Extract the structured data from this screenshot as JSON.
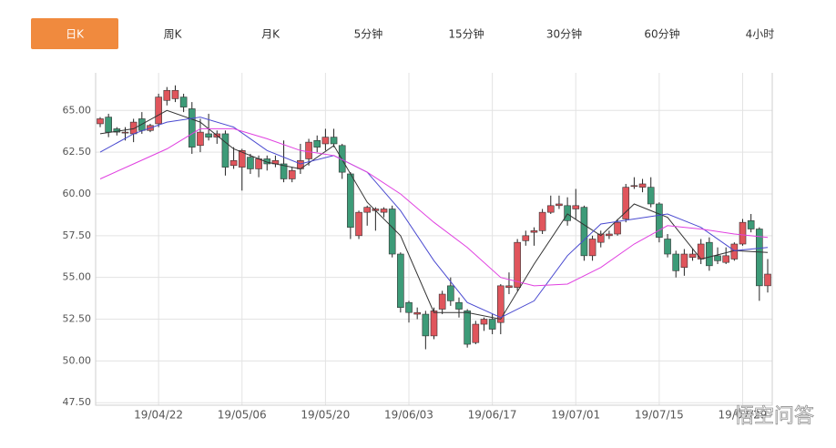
{
  "tabs": [
    "日K",
    "周K",
    "月K",
    "5分钟",
    "15分钟",
    "30分钟",
    "60分钟",
    "4小时"
  ],
  "active_tab": 0,
  "watermark": "悟空问答",
  "chart_data": {
    "type": "candlestick",
    "up_color": "#e0555c",
    "down_color": "#3d9b78",
    "grid": true,
    "ylim": [
      47.35,
      67.25
    ],
    "yticks": [
      {
        "value": 47.5,
        "label": "47.50"
      },
      {
        "value": 50,
        "label": "50.00"
      },
      {
        "value": 52.5,
        "label": "52.50"
      },
      {
        "value": 55,
        "label": "55.00"
      },
      {
        "value": 57.5,
        "label": "57.50"
      },
      {
        "value": 60,
        "label": "60.00"
      },
      {
        "value": 62.5,
        "label": "62.50"
      },
      {
        "value": 65,
        "label": "65.00"
      }
    ],
    "categories": [
      null,
      null,
      null,
      null,
      null,
      null,
      null,
      "19/04/22",
      null,
      null,
      null,
      null,
      null,
      null,
      null,
      null,
      null,
      "19/05/06",
      null,
      null,
      null,
      null,
      null,
      null,
      null,
      null,
      null,
      "19/05/20",
      null,
      null,
      null,
      null,
      null,
      null,
      null,
      null,
      null,
      "19/06/03",
      null,
      null,
      null,
      null,
      null,
      null,
      null,
      null,
      null,
      "19/06/17",
      null,
      null,
      null,
      null,
      null,
      null,
      null,
      null,
      null,
      "19/07/01",
      null,
      null,
      null,
      null,
      null,
      null,
      null,
      null,
      null,
      "19/07/15",
      null,
      null,
      null,
      null,
      null,
      null,
      null,
      null,
      null,
      "19/07/29",
      null,
      null,
      null
    ],
    "open": [
      64.2,
      64.6,
      63.9,
      63.7,
      63.6,
      64.5,
      63.8,
      64.2,
      65.6,
      65.7,
      65.8,
      65.1,
      62.9,
      63.6,
      63.4,
      63.6,
      61.7,
      61.6,
      62.2,
      61.5,
      62.1,
      61.8,
      61.8,
      60.9,
      61.5,
      62.1,
      63.2,
      63.0,
      63.4,
      62.9,
      61.2,
      57.5,
      58.9,
      59.0,
      58.9,
      59.1,
      56.4,
      53.5,
      52.8,
      52.8,
      51.5,
      53.1,
      54.5,
      53.5,
      53.0,
      51.1,
      52.2,
      52.5,
      52.3,
      54.4,
      54.4,
      57.2,
      57.7,
      57.8,
      58.9,
      59.3,
      59.3,
      59.1,
      59.2,
      56.3,
      57.1,
      57.5,
      57.6,
      58.5,
      60.5,
      60.4,
      60.4,
      59.4,
      57.3,
      56.4,
      55.6,
      56.2,
      56.1,
      57.1,
      56.3,
      55.9,
      56.1,
      57.0,
      58.4,
      57.9,
      54.5
    ],
    "high": [
      64.6,
      64.8,
      64.0,
      64.0,
      64.5,
      64.9,
      64.2,
      66.0,
      66.4,
      66.5,
      66.0,
      65.5,
      64.5,
      64.8,
      63.8,
      63.8,
      62.8,
      62.7,
      62.4,
      62.3,
      62.3,
      62.3,
      63.2,
      61.6,
      63.0,
      63.3,
      63.5,
      63.9,
      63.9,
      63.0,
      61.3,
      59.0,
      59.3,
      59.2,
      59.2,
      59.3,
      56.5,
      53.6,
      53.2,
      53.0,
      53.2,
      54.2,
      55.0,
      53.8,
      53.1,
      52.4,
      52.6,
      52.8,
      54.6,
      55.3,
      57.3,
      57.8,
      58.0,
      59.1,
      59.9,
      59.9,
      59.8,
      60.3,
      59.3,
      57.5,
      57.8,
      57.8,
      58.5,
      60.6,
      61.0,
      60.9,
      61.0,
      59.5,
      57.6,
      56.6,
      56.7,
      56.7,
      57.3,
      57.4,
      56.8,
      56.8,
      57.1,
      58.5,
      58.8,
      58.0,
      56.1
    ],
    "low": [
      64.0,
      63.4,
      63.5,
      63.2,
      63.1,
      63.6,
      63.7,
      64.0,
      65.3,
      65.5,
      64.9,
      62.4,
      62.5,
      63.2,
      63.0,
      61.1,
      61.5,
      60.2,
      61.2,
      61.0,
      61.4,
      61.6,
      60.7,
      60.7,
      61.2,
      61.7,
      62.5,
      62.6,
      62.8,
      60.9,
      57.3,
      57.3,
      58.1,
      57.8,
      58.6,
      56.2,
      52.9,
      52.3,
      52.5,
      50.7,
      51.3,
      52.8,
      53.3,
      52.6,
      50.8,
      51.0,
      51.8,
      51.6,
      51.6,
      54.0,
      54.2,
      56.9,
      56.9,
      57.6,
      58.8,
      59.1,
      58.1,
      58.5,
      56.0,
      56.0,
      56.8,
      57.3,
      57.5,
      58.3,
      60.3,
      60.1,
      59.2,
      57.1,
      56.2,
      55.0,
      55.1,
      56.0,
      55.8,
      55.4,
      55.8,
      55.8,
      56.0,
      56.9,
      57.7,
      53.6,
      54.1
    ],
    "close": [
      64.5,
      63.7,
      63.7,
      63.7,
      64.3,
      63.8,
      64.1,
      65.8,
      66.2,
      66.2,
      65.2,
      62.8,
      63.7,
      63.4,
      63.6,
      61.6,
      62.0,
      62.6,
      61.5,
      62.1,
      61.8,
      62.0,
      60.9,
      61.4,
      62.0,
      63.1,
      62.8,
      63.4,
      63.0,
      61.3,
      58.0,
      58.9,
      59.2,
      59.1,
      59.1,
      56.4,
      53.2,
      52.9,
      52.9,
      51.5,
      53.0,
      54.0,
      53.6,
      53.1,
      51.0,
      52.2,
      52.5,
      51.9,
      54.5,
      54.5,
      57.1,
      57.5,
      57.8,
      58.9,
      59.3,
      59.4,
      58.4,
      59.3,
      56.3,
      57.3,
      57.6,
      57.6,
      58.3,
      60.4,
      60.5,
      60.6,
      59.4,
      57.4,
      56.4,
      55.4,
      56.4,
      56.4,
      57.0,
      55.7,
      56.0,
      56.3,
      57.0,
      58.3,
      57.9,
      54.5,
      55.2
    ],
    "lines": [
      {
        "color": "#333333",
        "x": [
          0,
          4,
          8,
          12,
          16,
          20,
          24,
          28,
          32,
          36,
          40,
          44,
          48,
          52,
          56,
          60,
          64,
          68,
          72,
          76,
          80
        ],
        "values": [
          63.6,
          63.9,
          65.0,
          64.3,
          62.7,
          61.9,
          61.5,
          62.9,
          59.5,
          57.5,
          52.9,
          52.9,
          52.5,
          55.8,
          58.8,
          57.5,
          59.4,
          58.6,
          56.1,
          56.6,
          56.5
        ]
      },
      {
        "color": "#4a4ad0",
        "x": [
          0,
          4,
          8,
          12,
          16,
          20,
          24,
          28,
          32,
          36,
          40,
          44,
          48,
          52,
          56,
          60,
          64,
          68,
          72,
          76,
          80
        ],
        "values": [
          62.5,
          63.6,
          64.3,
          64.6,
          64.0,
          62.6,
          61.8,
          62.3,
          61.3,
          59.0,
          56.0,
          53.5,
          52.6,
          53.6,
          56.3,
          58.2,
          58.5,
          58.8,
          58.0,
          56.6,
          56.8
        ]
      },
      {
        "color": "#e040e0",
        "x": [
          0,
          4,
          8,
          12,
          16,
          20,
          24,
          28,
          32,
          36,
          40,
          44,
          48,
          52,
          56,
          60,
          64,
          68,
          72,
          76,
          80
        ],
        "values": [
          60.9,
          61.8,
          62.7,
          63.9,
          63.9,
          63.3,
          62.6,
          62.3,
          61.3,
          60.0,
          58.3,
          56.8,
          55.0,
          54.5,
          54.6,
          55.6,
          57.0,
          58.1,
          57.9,
          57.6,
          57.4
        ]
      }
    ]
  }
}
